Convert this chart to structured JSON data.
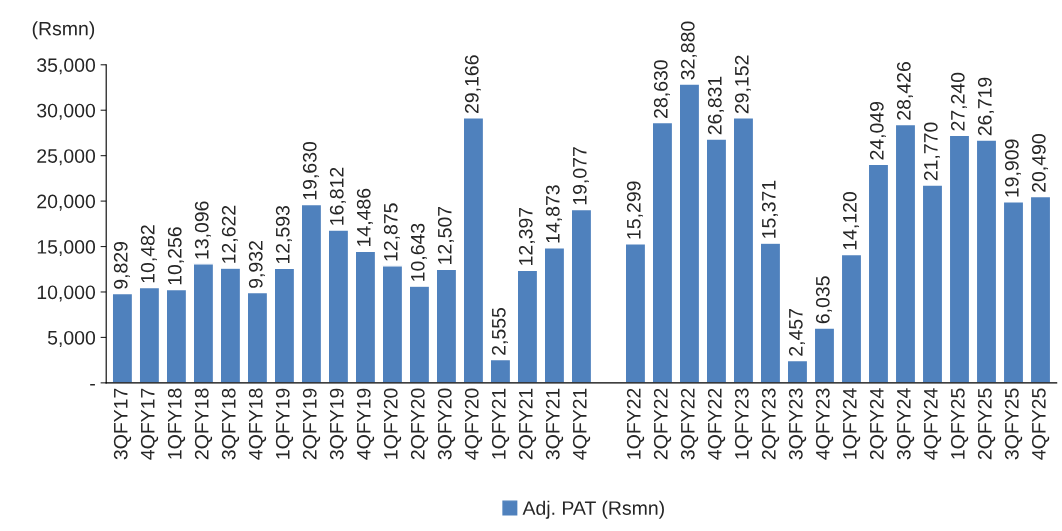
{
  "chart_data": {
    "type": "bar",
    "ylabel": "(Rsmn)",
    "categories": [
      "3QFY17",
      "4QFY17",
      "1QFY18",
      "2QFY18",
      "3QFY18",
      "4QFY18",
      "1QFY19",
      "2QFY19",
      "3QFY19",
      "4QFY19",
      "1QFY20",
      "2QFY20",
      "3QFY20",
      "4QFY20",
      "1QFY21",
      "2QFY21",
      "3QFY21",
      "4QFY21",
      null,
      "1QFY22",
      "2QFY22",
      "3QFY22",
      "4QFY22",
      "1QFY23",
      "2QFY23",
      "3QFY23",
      "4QFY23",
      "1QFY24",
      "2QFY24",
      "3QFY24",
      "4QFY24",
      "1QFY25",
      "2QFY25",
      "3QFY25",
      "4QFY25"
    ],
    "series": [
      {
        "name": "Adj. PAT (Rsmn)",
        "color": "#4f81bd",
        "values": [
          9829,
          10482,
          10256,
          13096,
          12622,
          9932,
          12593,
          19630,
          16812,
          14486,
          12875,
          10643,
          12507,
          29166,
          2555,
          12397,
          14873,
          19077,
          null,
          15299,
          28630,
          32880,
          26831,
          29152,
          15371,
          2457,
          6035,
          14120,
          24049,
          28426,
          21770,
          27240,
          26719,
          19909,
          20490
        ],
        "value_labels": [
          "9,829",
          "10,482",
          "10,256",
          "13,096",
          "12,622",
          "9,932",
          "12,593",
          "19,630",
          "16,812",
          "14,486",
          "12,875",
          "10,643",
          "12,507",
          "29,166",
          "2,555",
          "12,397",
          "14,873",
          "19,077",
          null,
          "15,299",
          "28,630",
          "32,880",
          "26,831",
          "29,152",
          "15,371",
          "2,457",
          "6,035",
          "14,120",
          "24,049",
          "28,426",
          "21,770",
          "27,240",
          "26,719",
          "19,909",
          "20,490"
        ]
      }
    ],
    "ylim": [
      0,
      35000
    ],
    "yticks": [
      {
        "value": 0,
        "label": "-"
      },
      {
        "value": 5000,
        "label": "5,000"
      },
      {
        "value": 10000,
        "label": "10,000"
      },
      {
        "value": 15000,
        "label": "15,000"
      },
      {
        "value": 20000,
        "label": "20,000"
      },
      {
        "value": 25000,
        "label": "25,000"
      },
      {
        "value": 30000,
        "label": "30,000"
      },
      {
        "value": 35000,
        "label": "35,000"
      }
    ],
    "grid": false,
    "legend": "bottom"
  }
}
